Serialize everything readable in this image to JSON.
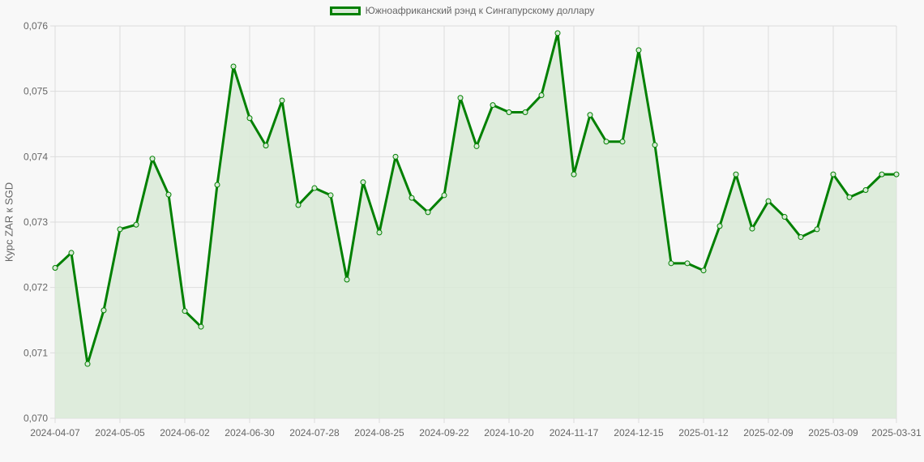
{
  "chart_data": {
    "type": "line",
    "title": "",
    "legend": [
      "Южноафриканский рэнд к Сингапурскому доллару"
    ],
    "legend_position": "top",
    "xlabel": "",
    "ylabel": "Курс ZAR к SGD",
    "ylim": [
      0.07,
      0.076
    ],
    "grid": true,
    "filled": true,
    "colors": {
      "line": "#008000",
      "fill": "#d9ead7",
      "grid": "#dcdcdc",
      "text": "#666666"
    },
    "y_ticks": [
      "0,076",
      "0,075",
      "0,074",
      "0,073",
      "0,072",
      "0,071",
      "0,070"
    ],
    "x_ticks": [
      "2024-04-07",
      "2024-05-05",
      "2024-06-02",
      "2024-06-30",
      "2024-07-28",
      "2024-08-25",
      "2024-09-22",
      "2024-10-20",
      "2024-11-17",
      "2024-12-15",
      "2025-01-12",
      "2025-02-09",
      "2025-03-09",
      "2025-03-31"
    ],
    "x": [
      "2024-04-07",
      "2024-04-14",
      "2024-04-21",
      "2024-04-28",
      "2024-05-05",
      "2024-05-12",
      "2024-05-19",
      "2024-05-26",
      "2024-06-02",
      "2024-06-09",
      "2024-06-16",
      "2024-06-23",
      "2024-06-30",
      "2024-07-07",
      "2024-07-14",
      "2024-07-21",
      "2024-07-28",
      "2024-08-04",
      "2024-08-11",
      "2024-08-18",
      "2024-08-25",
      "2024-09-01",
      "2024-09-08",
      "2024-09-15",
      "2024-09-22",
      "2024-09-29",
      "2024-10-06",
      "2024-10-13",
      "2024-10-20",
      "2024-10-27",
      "2024-11-03",
      "2024-11-10",
      "2024-11-17",
      "2024-11-24",
      "2024-12-01",
      "2024-12-08",
      "2024-12-15",
      "2024-12-22",
      "2024-12-29",
      "2025-01-05",
      "2025-01-12",
      "2025-01-19",
      "2025-01-26",
      "2025-02-02",
      "2025-02-09",
      "2025-02-16",
      "2025-02-23",
      "2025-03-02",
      "2025-03-09",
      "2025-03-16",
      "2025-03-23",
      "2025-03-30",
      "2025-03-31"
    ],
    "series": [
      {
        "name": "Южноафриканский рэнд к Сингапурскому доллару",
        "values": [
          0.0723,
          0.07253,
          0.07083,
          0.07165,
          0.07289,
          0.07296,
          0.07397,
          0.07342,
          0.07164,
          0.0714,
          0.07357,
          0.07538,
          0.07459,
          0.07417,
          0.07486,
          0.07326,
          0.07352,
          0.07341,
          0.07212,
          0.07361,
          0.07284,
          0.074,
          0.07337,
          0.07315,
          0.07341,
          0.0749,
          0.07416,
          0.07479,
          0.07468,
          0.07468,
          0.07494,
          0.07589,
          0.07373,
          0.07464,
          0.07423,
          0.07423,
          0.07563,
          0.07418,
          0.07237,
          0.07237,
          0.07226,
          0.07294,
          0.07373,
          0.0729,
          0.07332,
          0.07308,
          0.07277,
          0.07289,
          0.07373,
          0.07338,
          0.07349,
          0.07373,
          0.07373
        ]
      }
    ]
  }
}
